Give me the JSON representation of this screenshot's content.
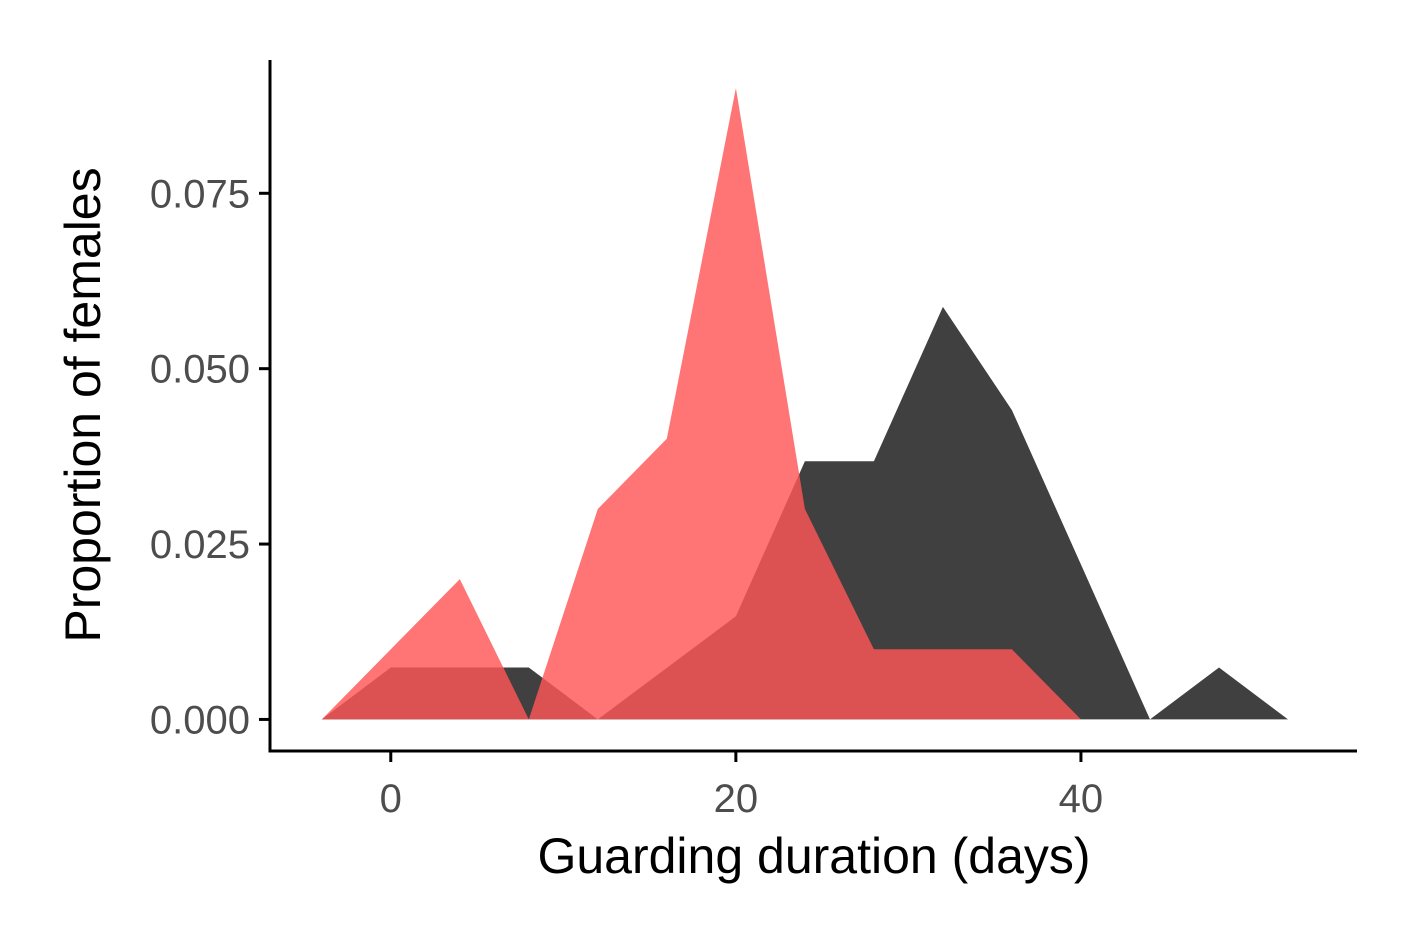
{
  "chart_data": {
    "type": "area",
    "xlabel": "Guarding duration (days)",
    "ylabel": "Proportion of females",
    "xlim": [
      -7,
      56
    ],
    "ylim": [
      -0.0045,
      0.094
    ],
    "x_ticks": [
      0,
      20,
      40
    ],
    "x_tick_labels": [
      "0",
      "20",
      "40"
    ],
    "y_ticks": [
      0,
      0.025,
      0.05,
      0.075
    ],
    "y_tick_labels": [
      "0.000",
      "0.025",
      "0.050",
      "0.075"
    ],
    "grid": false,
    "legend": "none",
    "series": [
      {
        "color": "#404040",
        "opacity": 1.0,
        "points": [
          [
            -4,
            0
          ],
          [
            0,
            0.0074
          ],
          [
            8,
            0.0074
          ],
          [
            12,
            0
          ],
          [
            20,
            0.0147
          ],
          [
            24,
            0.0368
          ],
          [
            28,
            0.0368
          ],
          [
            32,
            0.0588
          ],
          [
            36,
            0.0441
          ],
          [
            40,
            0.0221
          ],
          [
            44,
            0
          ],
          [
            48,
            0.0074
          ],
          [
            52,
            0
          ]
        ]
      },
      {
        "color": "#ff5555",
        "opacity": 0.82,
        "points": [
          [
            -4,
            0
          ],
          [
            4,
            0.02
          ],
          [
            8,
            0
          ],
          [
            12,
            0.03
          ],
          [
            16,
            0.04
          ],
          [
            20,
            0.09
          ],
          [
            24,
            0.03
          ],
          [
            28,
            0.01
          ],
          [
            36,
            0.01
          ],
          [
            40,
            0
          ]
        ]
      }
    ]
  }
}
